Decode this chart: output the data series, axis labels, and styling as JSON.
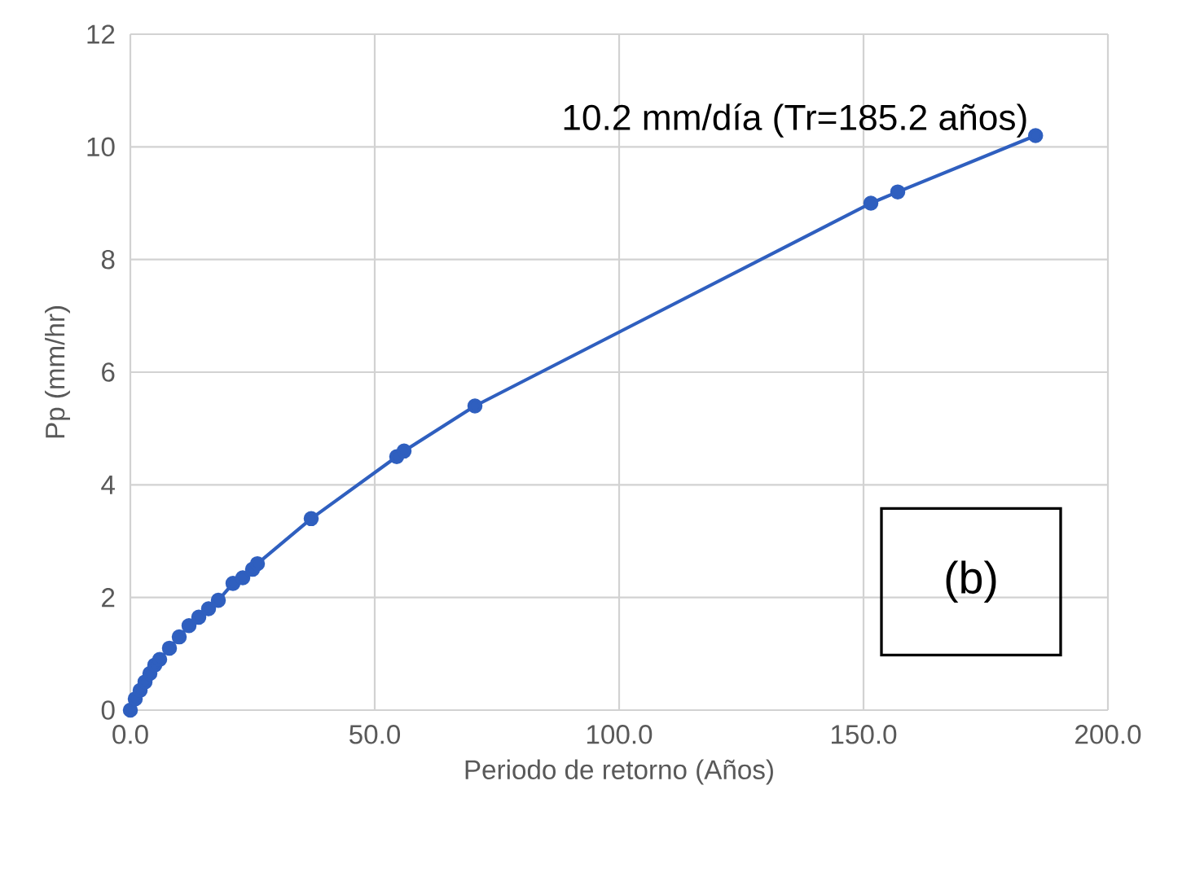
{
  "chart_data": {
    "type": "line",
    "xlabel": "Periodo de retorno (Años)",
    "ylabel": "Pp (mm/hr)",
    "x": [
      0,
      1,
      2,
      3,
      4,
      5,
      6,
      8,
      10,
      12,
      14,
      16,
      18,
      21,
      23,
      25,
      26,
      37,
      54.5,
      56,
      70.5,
      151.5,
      157,
      185.2
    ],
    "series": [
      {
        "color": "#2f5fbf",
        "values": [
          0,
          0.2,
          0.35,
          0.5,
          0.65,
          0.8,
          0.9,
          1.1,
          1.3,
          1.5,
          1.65,
          1.8,
          1.95,
          2.25,
          2.35,
          2.5,
          2.6,
          3.4,
          4.5,
          4.6,
          5.4,
          9.0,
          9.2,
          10.2
        ]
      }
    ],
    "xlim": [
      0,
      200
    ],
    "ylim": [
      0,
      12
    ],
    "xticks": [
      {
        "value": 0,
        "label": "0.0"
      },
      {
        "value": 50,
        "label": "50.0"
      },
      {
        "value": 100,
        "label": "100.0"
      },
      {
        "value": 150,
        "label": "150.0"
      },
      {
        "value": 200,
        "label": "200.0"
      }
    ],
    "yticks": [
      0,
      2,
      4,
      6,
      8,
      10,
      12
    ],
    "grid": true,
    "marker": "circle",
    "line_style": "solid",
    "annotations": [
      {
        "text": "10.2 mm/día (Tr=185.2 años)",
        "x": 185.2,
        "y": 10.2
      },
      "(b)"
    ]
  }
}
